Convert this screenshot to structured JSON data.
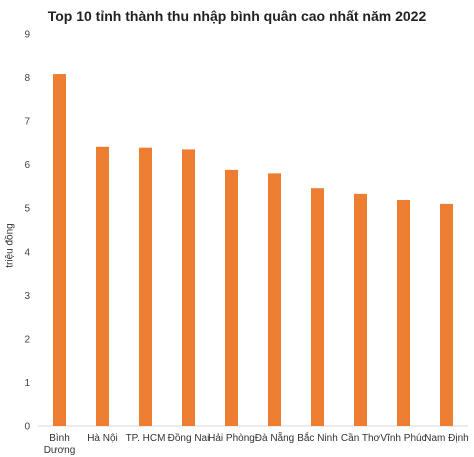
{
  "chart_data": {
    "type": "bar",
    "title": "Top 10 tỉnh thành thu nhập bình quân cao nhất năm 2022",
    "xlabel": "",
    "ylabel": "triệu đồng",
    "ylim": [
      0,
      9
    ],
    "yticks": [
      "0",
      "1",
      "2",
      "3",
      "4",
      "5",
      "6",
      "7",
      "8",
      "9"
    ],
    "grid": false,
    "categories": [
      [
        "Bình",
        "Dương"
      ],
      [
        "Hà Nội"
      ],
      [
        "TP. HCM"
      ],
      [
        "Đồng Nai"
      ],
      [
        "Hải Phòng"
      ],
      [
        "Đà Nẵng"
      ],
      [
        "Bắc Ninh"
      ],
      [
        "Cần Thơ"
      ],
      [
        "Vĩnh Phúc"
      ],
      [
        "Nam Định"
      ]
    ],
    "values": [
      8.08,
      6.41,
      6.39,
      6.35,
      5.88,
      5.8,
      5.46,
      5.33,
      5.19,
      5.1
    ],
    "bar_color": "#ED7D31"
  }
}
